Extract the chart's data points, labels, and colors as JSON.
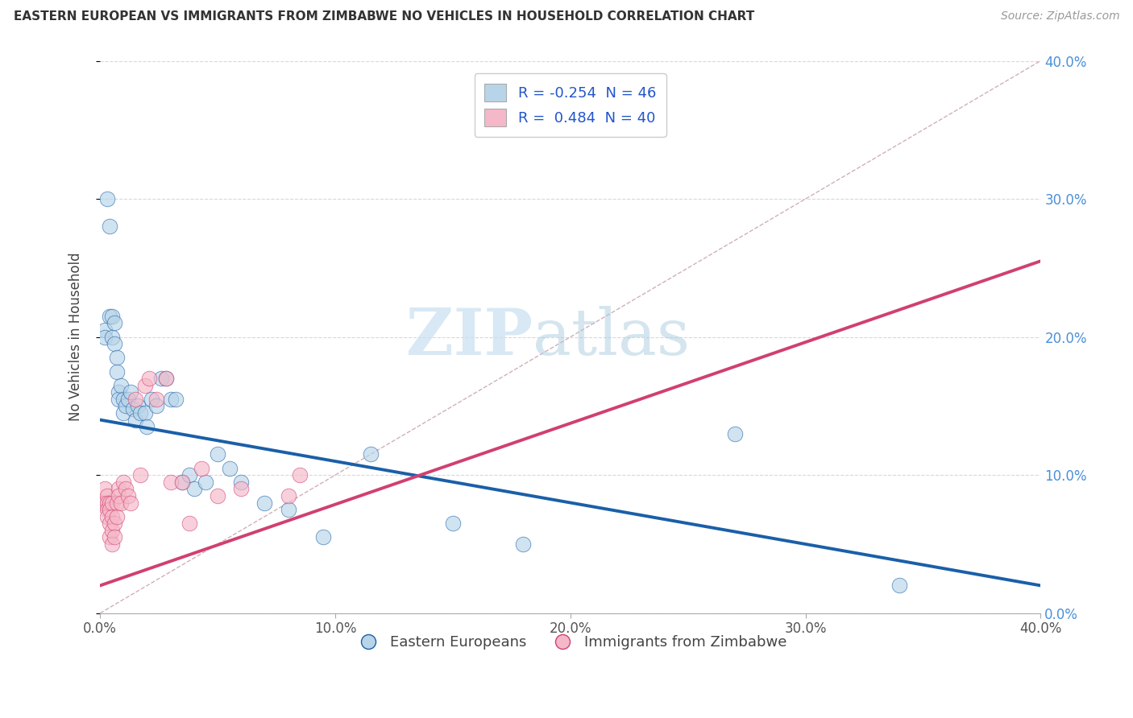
{
  "title": "EASTERN EUROPEAN VS IMMIGRANTS FROM ZIMBABWE NO VEHICLES IN HOUSEHOLD CORRELATION CHART",
  "source": "Source: ZipAtlas.com",
  "ylabel": "No Vehicles in Household",
  "r_blue": -0.254,
  "n_blue": 46,
  "r_pink": 0.484,
  "n_pink": 40,
  "legend_labels": [
    "Eastern Europeans",
    "Immigrants from Zimbabwe"
  ],
  "blue_color": "#b8d4e8",
  "pink_color": "#f5b8c8",
  "blue_line_color": "#1a5fa8",
  "pink_line_color": "#d04070",
  "blue_trend_x": [
    0.0,
    0.4
  ],
  "blue_trend_y": [
    0.14,
    0.02
  ],
  "pink_trend_x": [
    0.0,
    0.4
  ],
  "pink_trend_y": [
    0.02,
    0.255
  ],
  "blue_scatter_x": [
    0.002,
    0.002,
    0.003,
    0.004,
    0.004,
    0.005,
    0.005,
    0.006,
    0.006,
    0.007,
    0.007,
    0.008,
    0.008,
    0.009,
    0.01,
    0.01,
    0.011,
    0.012,
    0.013,
    0.014,
    0.015,
    0.016,
    0.017,
    0.019,
    0.02,
    0.022,
    0.024,
    0.026,
    0.028,
    0.03,
    0.032,
    0.035,
    0.038,
    0.04,
    0.045,
    0.05,
    0.055,
    0.06,
    0.07,
    0.08,
    0.095,
    0.115,
    0.15,
    0.18,
    0.27,
    0.34
  ],
  "blue_scatter_y": [
    0.205,
    0.2,
    0.3,
    0.28,
    0.215,
    0.215,
    0.2,
    0.21,
    0.195,
    0.185,
    0.175,
    0.16,
    0.155,
    0.165,
    0.145,
    0.155,
    0.15,
    0.155,
    0.16,
    0.148,
    0.14,
    0.15,
    0.145,
    0.145,
    0.135,
    0.155,
    0.15,
    0.17,
    0.17,
    0.155,
    0.155,
    0.095,
    0.1,
    0.09,
    0.095,
    0.115,
    0.105,
    0.095,
    0.08,
    0.075,
    0.055,
    0.115,
    0.065,
    0.05,
    0.13,
    0.02
  ],
  "pink_scatter_x": [
    0.001,
    0.002,
    0.002,
    0.003,
    0.003,
    0.003,
    0.003,
    0.004,
    0.004,
    0.004,
    0.004,
    0.005,
    0.005,
    0.005,
    0.005,
    0.006,
    0.006,
    0.007,
    0.007,
    0.008,
    0.008,
    0.009,
    0.01,
    0.011,
    0.012,
    0.013,
    0.015,
    0.017,
    0.019,
    0.021,
    0.024,
    0.028,
    0.03,
    0.035,
    0.038,
    0.043,
    0.05,
    0.06,
    0.08,
    0.085
  ],
  "pink_scatter_y": [
    0.08,
    0.09,
    0.08,
    0.085,
    0.08,
    0.075,
    0.07,
    0.08,
    0.075,
    0.065,
    0.055,
    0.08,
    0.07,
    0.06,
    0.05,
    0.065,
    0.055,
    0.08,
    0.07,
    0.09,
    0.085,
    0.08,
    0.095,
    0.09,
    0.085,
    0.08,
    0.155,
    0.1,
    0.165,
    0.17,
    0.155,
    0.17,
    0.095,
    0.095,
    0.065,
    0.105,
    0.085,
    0.09,
    0.085,
    0.1
  ],
  "xlim": [
    0.0,
    0.4
  ],
  "ylim": [
    0.0,
    0.4
  ],
  "xticks": [
    0.0,
    0.1,
    0.2,
    0.3,
    0.4
  ],
  "xtick_labels": [
    "0.0%",
    "10.0%",
    "20.0%",
    "30.0%",
    "40.0%"
  ],
  "yticks": [
    0.0,
    0.1,
    0.2,
    0.3,
    0.4
  ],
  "ytick_labels": [
    "0.0%",
    "10.0%",
    "20.0%",
    "30.0%",
    "40.0%"
  ],
  "watermark_zip": "ZIP",
  "watermark_atlas": "atlas",
  "background_color": "#ffffff",
  "grid_color": "#d8d8d8"
}
